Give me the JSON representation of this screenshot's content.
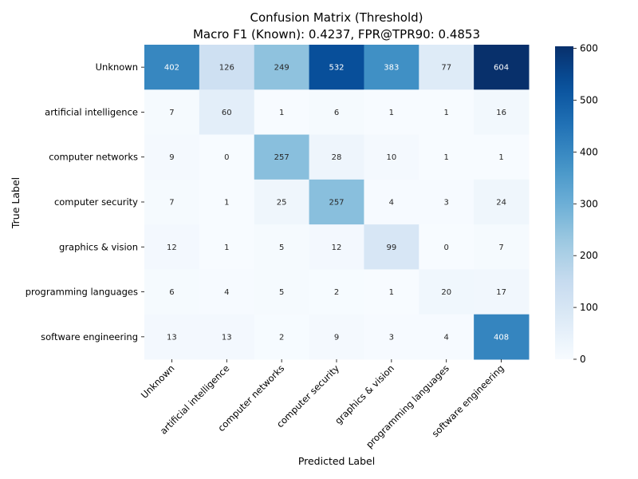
{
  "chart_data": {
    "type": "heatmap",
    "title": "Confusion Matrix (Threshold)",
    "subtitle": "Macro F1 (Known): 0.4237, FPR@TPR90: 0.4853",
    "xlabel": "Predicted Label",
    "ylabel": "True Label",
    "x_categories": [
      "Unknown",
      "artificial intelligence",
      "computer networks",
      "computer security",
      "graphics & vision",
      "programming languages",
      "software engineering"
    ],
    "y_categories": [
      "Unknown",
      "artificial intelligence",
      "computer networks",
      "computer security",
      "graphics & vision",
      "programming languages",
      "software engineering"
    ],
    "values": [
      [
        402,
        126,
        249,
        532,
        383,
        77,
        604
      ],
      [
        7,
        60,
        1,
        6,
        1,
        1,
        16
      ],
      [
        9,
        0,
        257,
        28,
        10,
        1,
        1
      ],
      [
        7,
        1,
        25,
        257,
        4,
        3,
        24
      ],
      [
        12,
        1,
        5,
        12,
        99,
        0,
        7
      ],
      [
        6,
        4,
        5,
        2,
        1,
        20,
        17
      ],
      [
        13,
        13,
        2,
        9,
        3,
        4,
        408
      ]
    ],
    "colormap": "Blues",
    "vmin": 0,
    "vmax": 604,
    "colorbar_ticks": [
      0,
      100,
      200,
      300,
      400,
      500,
      600
    ],
    "colors": {
      "low": "#f7fbff",
      "high": "#08306b"
    }
  }
}
